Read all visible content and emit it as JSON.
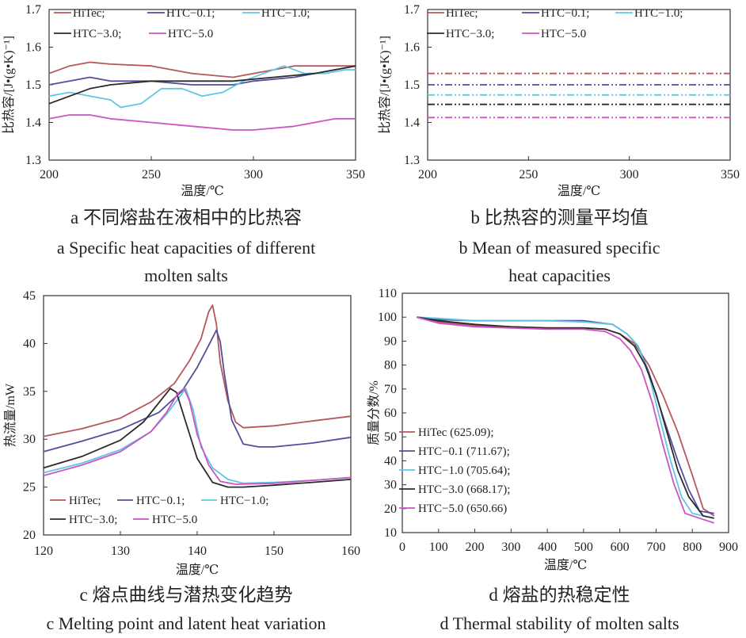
{
  "captions": {
    "a_cn": "a 不同熔盐在液相中的比热容",
    "a_en_1": "a Specific heat capacities of different",
    "a_en_2": "molten salts",
    "b_cn": "b 比热容的测量平均值",
    "b_en_1": "b  Mean of measured specific",
    "b_en_2": "heat capacities",
    "c_cn": "c  熔点曲线与潜热变化趋势",
    "c_en": "c Melting point and latent heat variation",
    "d_cn": "d  熔盐的热稳定性",
    "d_en": "d Thermal stability of molten salts"
  },
  "colors": {
    "HiTec": "#b5575b",
    "HTC-0.1": "#4f4f9e",
    "HTC-1.0": "#5fc7e4",
    "HTC-3.0": "#2b2b2b",
    "HTC-5.0": "#cc55c0"
  },
  "chart_data": [
    {
      "id": "a",
      "type": "line",
      "xlabel": "温度/℃",
      "ylabel": "比热容/[J•(g•K)⁻¹]",
      "xlim": [
        200,
        350
      ],
      "ylim": [
        1.3,
        1.7
      ],
      "xticks": [
        "200",
        "250",
        "300",
        "350"
      ],
      "yticks": [
        "1.3",
        "1.4",
        "1.5",
        "1.6",
        "1.7"
      ],
      "legend": [
        "HiTec;",
        "HTC−0.1;",
        "HTC−1.0;",
        "HTC−3.0;",
        "HTC−5.0"
      ],
      "legend_position": "top-left",
      "series": [
        {
          "name": "HiTec",
          "x": [
            200,
            210,
            220,
            230,
            250,
            270,
            290,
            300,
            320,
            340,
            350
          ],
          "y": [
            1.53,
            1.55,
            1.56,
            1.555,
            1.55,
            1.53,
            1.52,
            1.53,
            1.55,
            1.55,
            1.55
          ]
        },
        {
          "name": "HTC-0.1",
          "x": [
            200,
            210,
            220,
            230,
            250,
            270,
            290,
            300,
            320,
            340,
            350
          ],
          "y": [
            1.5,
            1.51,
            1.52,
            1.51,
            1.51,
            1.5,
            1.5,
            1.51,
            1.52,
            1.54,
            1.55
          ]
        },
        {
          "name": "HTC-1.0",
          "x": [
            200,
            210,
            220,
            230,
            235,
            245,
            255,
            265,
            275,
            285,
            295,
            305,
            315,
            325,
            335,
            345,
            350
          ],
          "y": [
            1.47,
            1.48,
            1.47,
            1.46,
            1.44,
            1.45,
            1.49,
            1.49,
            1.47,
            1.48,
            1.51,
            1.53,
            1.55,
            1.53,
            1.53,
            1.54,
            1.54
          ]
        },
        {
          "name": "HTC-3.0",
          "x": [
            200,
            210,
            220,
            230,
            250,
            270,
            290,
            310,
            330,
            350
          ],
          "y": [
            1.45,
            1.47,
            1.49,
            1.5,
            1.51,
            1.51,
            1.51,
            1.52,
            1.53,
            1.55
          ]
        },
        {
          "name": "HTC-5.0",
          "x": [
            200,
            210,
            220,
            230,
            250,
            270,
            290,
            300,
            320,
            340,
            350
          ],
          "y": [
            1.41,
            1.42,
            1.42,
            1.41,
            1.4,
            1.39,
            1.38,
            1.38,
            1.39,
            1.41,
            1.41
          ]
        }
      ]
    },
    {
      "id": "b",
      "type": "line",
      "xlabel": "温度/℃",
      "ylabel": "比热容/[J•(g•K)⁻¹]",
      "xlim": [
        200,
        350
      ],
      "ylim": [
        1.3,
        1.7
      ],
      "xticks": [
        "200",
        "250",
        "300",
        "350"
      ],
      "yticks": [
        "1.3",
        "1.4",
        "1.5",
        "1.6",
        "1.7"
      ],
      "legend": [
        "HiTec;",
        "HTC−0.1;",
        "HTC−1.0;",
        "HTC−3.0;",
        "HTC−5.0"
      ],
      "legend_position": "top-left",
      "series": [
        {
          "name": "HiTec",
          "x": [
            200,
            350
          ],
          "y": [
            1.53,
            1.53
          ]
        },
        {
          "name": "HTC-0.1",
          "x": [
            200,
            350
          ],
          "y": [
            1.5,
            1.5
          ]
        },
        {
          "name": "HTC-1.0",
          "x": [
            200,
            350
          ],
          "y": [
            1.473,
            1.473
          ]
        },
        {
          "name": "HTC-3.0",
          "x": [
            200,
            350
          ],
          "y": [
            1.448,
            1.448
          ]
        },
        {
          "name": "HTC-5.0",
          "x": [
            200,
            350
          ],
          "y": [
            1.413,
            1.413
          ]
        }
      ]
    },
    {
      "id": "c",
      "type": "line",
      "xlabel": "温度/℃",
      "ylabel": "热流量/mW",
      "xlim": [
        120,
        160
      ],
      "ylim": [
        20,
        45
      ],
      "xticks": [
        "120",
        "130",
        "140",
        "150",
        "160"
      ],
      "yticks": [
        "20",
        "25",
        "30",
        "35",
        "40",
        "45"
      ],
      "legend": [
        "HiTec;",
        "HTC−0.1;",
        "HTC−1.0;",
        "HTC−3.0;",
        "HTC−5.0"
      ],
      "legend_position": "bottom-left",
      "series": [
        {
          "name": "HiTec",
          "x": [
            120,
            125,
            130,
            134,
            137,
            139,
            140.5,
            141.5,
            142,
            142.5,
            143,
            144,
            145,
            146,
            150,
            155,
            160
          ],
          "y": [
            30.3,
            31.1,
            32.2,
            33.9,
            35.8,
            38.2,
            40.5,
            43.3,
            44,
            42,
            38,
            34,
            31.8,
            31.2,
            31.4,
            31.9,
            32.4
          ]
        },
        {
          "name": "HTC-0.1",
          "x": [
            120,
            125,
            130,
            135,
            138,
            140,
            141.5,
            142.5,
            143,
            143.5,
            144.5,
            146,
            148,
            150,
            155,
            160
          ],
          "y": [
            28.7,
            29.8,
            31,
            32.8,
            35,
            37.5,
            39.8,
            41.4,
            40.2,
            37,
            32,
            29.5,
            29.2,
            29.2,
            29.6,
            30.2
          ]
        },
        {
          "name": "HTC-1.0",
          "x": [
            120,
            125,
            130,
            134,
            136,
            137.5,
            138.5,
            139.5,
            140.5,
            142,
            144,
            146,
            150,
            155,
            160
          ],
          "y": [
            26.5,
            27.5,
            28.9,
            30.8,
            32.6,
            34.2,
            35.3,
            33,
            29.2,
            27,
            25.8,
            25.4,
            25.5,
            25.7,
            26
          ]
        },
        {
          "name": "HTC-3.0",
          "x": [
            120,
            125,
            130,
            133,
            135,
            136.5,
            137.3,
            138.5,
            140,
            142,
            144,
            146,
            150,
            155,
            160
          ],
          "y": [
            27,
            28.2,
            29.9,
            31.8,
            33.8,
            35.3,
            34.9,
            31.8,
            28,
            25.5,
            25,
            25,
            25.2,
            25.5,
            25.8
          ]
        },
        {
          "name": "HTC-5.0",
          "x": [
            120,
            125,
            130,
            134,
            136,
            137.5,
            138.3,
            139,
            140,
            141.5,
            143,
            145,
            150,
            155,
            160
          ],
          "y": [
            26.2,
            27.3,
            28.7,
            30.8,
            32.8,
            34.8,
            35.3,
            34,
            30.5,
            27.3,
            25.6,
            25.3,
            25.4,
            25.7,
            26
          ]
        }
      ]
    },
    {
      "id": "d",
      "type": "line",
      "xlabel": "温度/℃",
      "ylabel": "质量分数/%",
      "xlim": [
        0,
        900
      ],
      "ylim": [
        10,
        110
      ],
      "xticks": [
        "0",
        "100",
        "200",
        "300",
        "400",
        "500",
        "600",
        "700",
        "800",
        "900"
      ],
      "yticks": [
        "10",
        "20",
        "30",
        "40",
        "50",
        "60",
        "70",
        "80",
        "90",
        "100",
        "110"
      ],
      "legend": [
        "HiTec (625.09);",
        "HTC−0.1 (711.67);",
        "HTC−1.0 (705.64);",
        "HTC−3.0 (668.17);",
        "HTC−5.0 (650.66)"
      ],
      "legend_position": "bottom-left",
      "series": [
        {
          "name": "HiTec",
          "x": [
            40,
            100,
            200,
            300,
            400,
            500,
            560,
            600,
            640,
            680,
            720,
            760,
            800,
            830,
            860
          ],
          "y": [
            100,
            98,
            96.5,
            96,
            95.5,
            95.5,
            95,
            93,
            89,
            80,
            67,
            52,
            34,
            20,
            17
          ]
        },
        {
          "name": "HTC-0.1",
          "x": [
            40,
            100,
            200,
            300,
            400,
            500,
            580,
            620,
            650,
            680,
            720,
            760,
            790,
            820,
            860
          ],
          "y": [
            100,
            99,
            98.5,
            98.5,
            98.5,
            98.5,
            97,
            93,
            88,
            77,
            58,
            40,
            28,
            19,
            18
          ]
        },
        {
          "name": "HTC-1.0",
          "x": [
            40,
            100,
            200,
            300,
            400,
            500,
            580,
            620,
            650,
            680,
            710,
            740,
            770,
            800,
            860
          ],
          "y": [
            100,
            99.5,
            98.5,
            98.5,
            98.5,
            98,
            97,
            93,
            88,
            76,
            58,
            40,
            25,
            18,
            16
          ]
        },
        {
          "name": "HTC-3.0",
          "x": [
            40,
            100,
            200,
            300,
            400,
            500,
            560,
            600,
            640,
            670,
            700,
            730,
            760,
            790,
            830,
            860
          ],
          "y": [
            100,
            98.5,
            97,
            96,
            95.5,
            95.5,
            95,
            93,
            88,
            80,
            68,
            52,
            36,
            25,
            17,
            16
          ]
        },
        {
          "name": "HTC-5.0",
          "x": [
            40,
            100,
            200,
            300,
            400,
            500,
            560,
            600,
            630,
            660,
            690,
            720,
            750,
            780,
            860
          ],
          "y": [
            100,
            97.5,
            96,
            95.5,
            95,
            95,
            94,
            91,
            86,
            78,
            64,
            46,
            30,
            18,
            14
          ]
        }
      ]
    }
  ]
}
